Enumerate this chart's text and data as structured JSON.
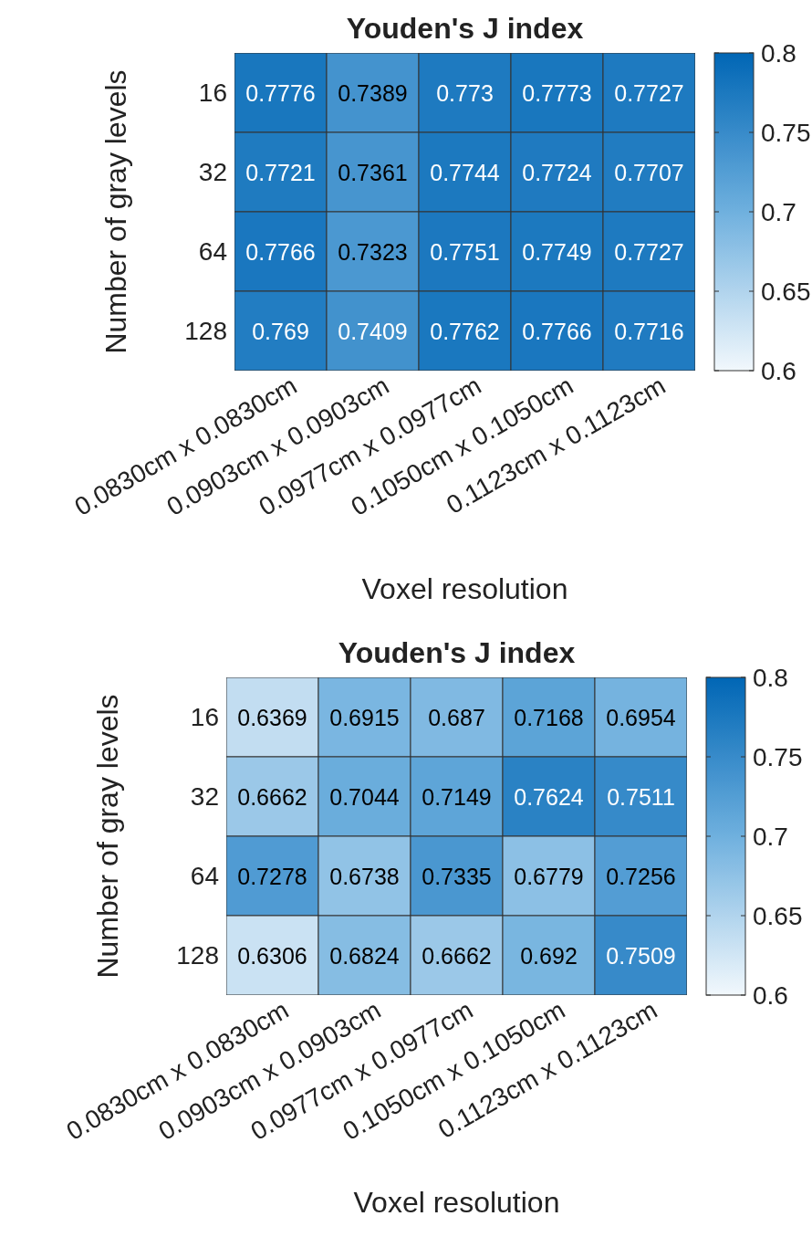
{
  "chart_data": [
    {
      "type": "heatmap",
      "title": "Youden's J index",
      "xlabel": "Voxel resolution",
      "ylabel": "Number of gray levels",
      "categories": [
        "0.0830cm x 0.0830cm",
        "0.0903cm x 0.0903cm",
        "0.0977cm x 0.0977cm",
        "0.1050cm x 0.1050cm",
        "0.1123cm x 0.1123cm"
      ],
      "y_categories": [
        "16",
        "32",
        "64",
        "128"
      ],
      "cells": [
        [
          0.7776,
          0.7389,
          0.773,
          0.7773,
          0.7727
        ],
        [
          0.7721,
          0.7361,
          0.7744,
          0.7724,
          0.7707
        ],
        [
          0.7766,
          0.7323,
          0.7751,
          0.7749,
          0.7727
        ],
        [
          0.769,
          0.7409,
          0.7762,
          0.7766,
          0.7716
        ]
      ],
      "data_labels": true,
      "clim": [
        0.6,
        0.8
      ],
      "cticks": [
        0.6,
        0.65,
        0.7,
        0.75,
        0.8
      ]
    },
    {
      "type": "heatmap",
      "title": "Youden's J index",
      "xlabel": "Voxel resolution",
      "ylabel": "Number of gray levels",
      "categories": [
        "0.0830cm x 0.0830cm",
        "0.0903cm x 0.0903cm",
        "0.0977cm x 0.0977cm",
        "0.1050cm x 0.1050cm",
        "0.1123cm x 0.1123cm"
      ],
      "y_categories": [
        "16",
        "32",
        "64",
        "128"
      ],
      "cells": [
        [
          0.6369,
          0.6915,
          0.687,
          0.7168,
          0.6954
        ],
        [
          0.6662,
          0.7044,
          0.7149,
          0.7624,
          0.7511
        ],
        [
          0.7278,
          0.6738,
          0.7335,
          0.6779,
          0.7256
        ],
        [
          0.6306,
          0.6824,
          0.6662,
          0.692,
          0.7509
        ]
      ],
      "data_labels": true,
      "clim": [
        0.6,
        0.8
      ],
      "cticks": [
        0.6,
        0.65,
        0.7,
        0.75,
        0.8
      ]
    }
  ]
}
